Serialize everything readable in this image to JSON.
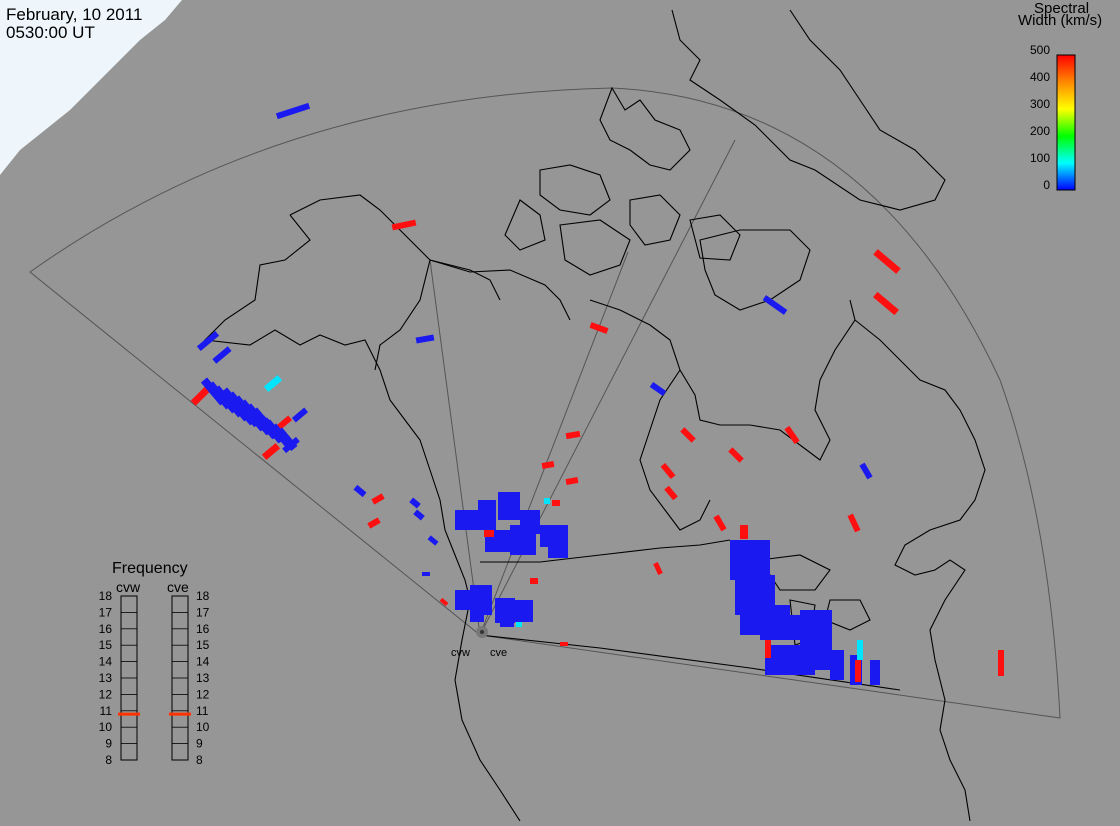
{
  "header": {
    "date": "February, 10 2011",
    "time": "0530:00 UT"
  },
  "colorbar": {
    "title_line1": "Spectral",
    "title_line2": "Width (km/s)",
    "ticks": [
      "500",
      "400",
      "300",
      "200",
      "100",
      "0"
    ],
    "range": [
      0,
      500
    ],
    "colors": [
      "#ff0000",
      "#ff8800",
      "#ffff00",
      "#00ff00",
      "#00ffff",
      "#0000ff"
    ]
  },
  "frequency_panel": {
    "title": "Frequency",
    "radar_left": "cvw",
    "radar_right": "cve",
    "ticks": [
      "18",
      "17",
      "16",
      "15",
      "14",
      "13",
      "12",
      "11",
      "10",
      "9",
      "8"
    ],
    "cvw_frequency_mhz": 10.8,
    "cve_frequency_mhz": 10.8,
    "marker_color": "#ff3300"
  },
  "radar_sites": {
    "cvw": "cvw",
    "cve": "cve"
  },
  "colors": {
    "background": "#969696",
    "land_outline": "#000000",
    "fov_outline": "#555555",
    "low_width": "#1a1af0",
    "cyan": "#00e5ff",
    "high_width": "#ff1010",
    "ice": "#eef6fb"
  }
}
